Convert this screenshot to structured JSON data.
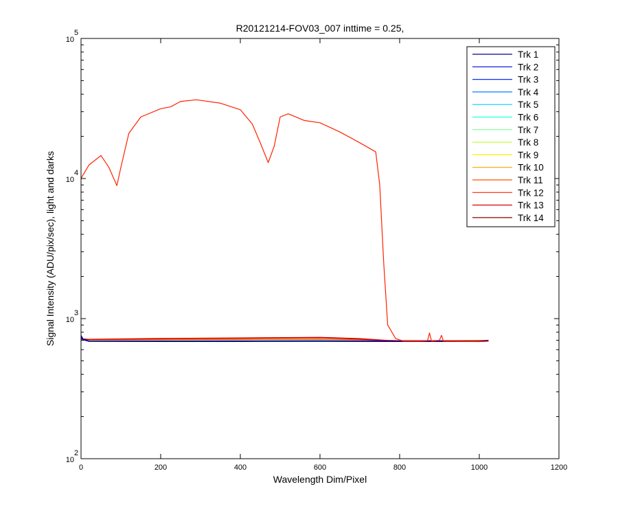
{
  "chart_data": {
    "type": "line",
    "title": "R20121214-FOV03_007 inttime = 0.25,",
    "xlabel": "Wavelength Dim/Pixel",
    "ylabel": "Signal Intensity (ADU/pix/sec), light and darks",
    "xlim": [
      0,
      1200
    ],
    "ylim": [
      100,
      100000
    ],
    "yscale": "log",
    "x_ticks": [
      0,
      200,
      400,
      600,
      800,
      1000,
      1200
    ],
    "y_ticks": [
      {
        "base": "10",
        "exp": "2",
        "value": 100
      },
      {
        "base": "10",
        "exp": "3",
        "value": 1000
      },
      {
        "base": "10",
        "exp": "4",
        "value": 10000
      },
      {
        "base": "10",
        "exp": "5",
        "value": 100000
      }
    ],
    "grid": false,
    "legend_position": "top-right",
    "series": [
      {
        "name": "Trk 1",
        "color": "#00008f",
        "x": [
          0,
          5,
          20,
          200,
          400,
          600,
          800,
          1000,
          1023
        ],
        "y": [
          760,
          715,
          692,
          690,
          690,
          692,
          690,
          690,
          700
        ]
      },
      {
        "name": "Trk 2",
        "color": "#0000df",
        "x": [
          0,
          5,
          20,
          200,
          400,
          600,
          800,
          1000,
          1023
        ],
        "y": [
          740,
          705,
          688,
          686,
          686,
          688,
          686,
          686,
          695
        ]
      },
      {
        "name": "Trk 3",
        "color": "#0030ff",
        "x": [
          0,
          20,
          200,
          400,
          600,
          800,
          1000,
          1023
        ],
        "y": [
          720,
          690,
          689,
          690,
          692,
          688,
          688,
          692
        ]
      },
      {
        "name": "Trk 4",
        "color": "#0080ff",
        "x": [
          0,
          20,
          200,
          400,
          600,
          800,
          1000,
          1023
        ],
        "y": [
          715,
          693,
          692,
          693,
          695,
          690,
          690,
          693
        ]
      },
      {
        "name": "Trk 5",
        "color": "#00cfff",
        "x": [
          0,
          20,
          200,
          400,
          600,
          800,
          1000,
          1023
        ],
        "y": [
          712,
          697,
          696,
          697,
          699,
          692,
          692,
          695
        ]
      },
      {
        "name": "Trk 6",
        "color": "#20ffdf",
        "x": [
          0,
          20,
          200,
          400,
          600,
          800,
          1000,
          1023
        ],
        "y": [
          712,
          699,
          698,
          699,
          701,
          693,
          693,
          696
        ]
      },
      {
        "name": "Trk 7",
        "color": "#70ff8f",
        "x": [
          0,
          20,
          200,
          400,
          600,
          800,
          1000,
          1023
        ],
        "y": [
          712,
          700,
          700,
          701,
          703,
          694,
          694,
          697
        ]
      },
      {
        "name": "Trk 8",
        "color": "#bfff40",
        "x": [
          0,
          20,
          200,
          400,
          600,
          800,
          1000,
          1023
        ],
        "y": [
          712,
          702,
          702,
          703,
          705,
          695,
          695,
          697
        ]
      },
      {
        "name": "Trk 9",
        "color": "#ffef00",
        "x": [
          0,
          20,
          200,
          400,
          600,
          800,
          1000,
          1023
        ],
        "y": [
          713,
          704,
          704,
          706,
          708,
          696,
          696,
          698
        ]
      },
      {
        "name": "Trk 10",
        "color": "#ffa000",
        "x": [
          0,
          20,
          200,
          400,
          600,
          800,
          1000,
          1023
        ],
        "y": [
          714,
          706,
          707,
          709,
          711,
          697,
          697,
          699
        ]
      },
      {
        "name": "Trk 11",
        "color": "#ff5000",
        "x": [
          0,
          20,
          200,
          400,
          600,
          800,
          1000,
          1023
        ],
        "y": [
          715,
          708,
          709,
          711,
          713,
          698,
          698,
          700
        ]
      },
      {
        "name": "Trk 12",
        "color": "#ff2000",
        "x": [
          0,
          5,
          20,
          50,
          70,
          90,
          100,
          120,
          150,
          200,
          225,
          250,
          290,
          350,
          400,
          430,
          450,
          470,
          485,
          500,
          520,
          560,
          600,
          650,
          700,
          740,
          750,
          760,
          770,
          790,
          810,
          850,
          870,
          875,
          880,
          900,
          905,
          910,
          1000,
          1023
        ],
        "y": [
          10000,
          10600,
          12500,
          14600,
          12000,
          8900,
          12000,
          21000,
          27500,
          31500,
          32500,
          35500,
          36500,
          34500,
          31000,
          24500,
          18000,
          13000,
          17000,
          27500,
          29000,
          26000,
          25000,
          21500,
          18000,
          15500,
          9000,
          2500,
          900,
          720,
          690,
          690,
          695,
          790,
          690,
          700,
          760,
          690,
          685,
          690
        ]
      },
      {
        "name": "Trk 13",
        "color": "#df0000",
        "x": [
          0,
          20,
          200,
          400,
          600,
          700,
          750,
          800,
          1000,
          1023
        ],
        "y": [
          718,
          712,
          722,
          728,
          735,
          720,
          705,
          688,
          686,
          690
        ]
      },
      {
        "name": "Trk 14",
        "color": "#8f0000",
        "x": [
          0,
          20,
          200,
          400,
          600,
          700,
          750,
          800,
          1000,
          1023
        ],
        "y": [
          716,
          710,
          719,
          724,
          730,
          715,
          700,
          690,
          688,
          690
        ]
      }
    ]
  }
}
